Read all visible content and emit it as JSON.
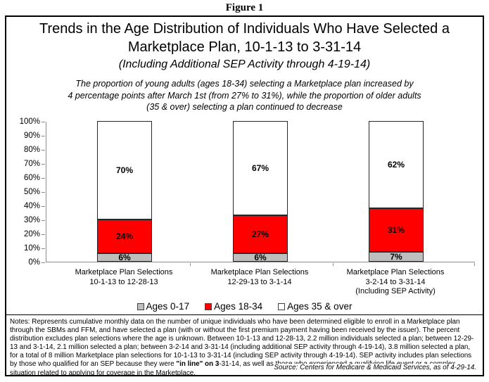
{
  "figure_label": "Figure 1",
  "title": {
    "line1": "Trends in the Age Distribution of Individuals Who Have Selected a",
    "line2": "Marketplace Plan, 10-1-13 to 3-31-14",
    "subtitle": "(Including Additional SEP Activity through 4-19-14)"
  },
  "annotation": {
    "line1": "The proportion of young adults (ages 18-34) selecting a Marketplace plan increased by",
    "line2": "4 percentage points after March 1st (from 27% to 31%), while the proportion of older adults",
    "line3": "(35 & over) selecting a plan continued to decrease"
  },
  "chart_data": {
    "type": "bar",
    "stacked": true,
    "grid": false,
    "legend_position": "bottom",
    "ylim": [
      0,
      100
    ],
    "yticks": [
      0,
      10,
      20,
      30,
      40,
      50,
      60,
      70,
      80,
      90,
      100
    ],
    "value_suffix": "%",
    "axis_color": "#8c8c8c",
    "bar_border_color": "#262626",
    "categories": [
      {
        "lines": [
          "Marketplace Plan Selections",
          "10-1-13 to 12-28-13"
        ]
      },
      {
        "lines": [
          "Marketplace Plan Selections",
          "12-29-13 to 3-1-14"
        ]
      },
      {
        "lines": [
          "Marketplace Plan Selections",
          "3-2-14 to 3-31-14",
          "(Including SEP Activity)"
        ]
      }
    ],
    "series": [
      {
        "name": "Ages 0-17",
        "color": "#bfbfbf",
        "values": [
          6,
          6,
          7
        ]
      },
      {
        "name": "Ages 18-34",
        "color": "#fe0000",
        "values": [
          24,
          27,
          31
        ]
      },
      {
        "name": "Ages 35 & over",
        "color": "#ffffff",
        "values": [
          70,
          67,
          62
        ]
      }
    ]
  },
  "notes": {
    "part1": "Notes:  Represents cumulative monthly data on the number of unique individuals who have been determined eligible to enroll in a Marketplace plan through the SBMs and FFM, and have selected a plan (with or without the first premium payment having been received by the issuer).  The percent distribution excludes plan selections where the age is unknown.  Between 10-1-13 and 12-28-13, 2.2 million individuals selected a plan; between 12-29-13 and 3-1-14, 2.1 million selected a plan; between 3-2-14 and 3-31-14 (including additional SEP activity through 4-19-14), 3.8 million selected a plan, for a total of 8 million Marketplace plan selections for 10-1-13 to 3-31-14 (including SEP activity through 4-19-14). SEP activity includes plan selections by those who qualified for an SEP because they were ",
    "bold": "\"in line\" on 3",
    "part2": "-31-14, as well as those who experienced a qualifying life event or a complex situation related to applying for coverage in the Marketplace.",
    "source": "Source:  Centers for Medicare & Medicaid Services, as of 4-29-14."
  }
}
